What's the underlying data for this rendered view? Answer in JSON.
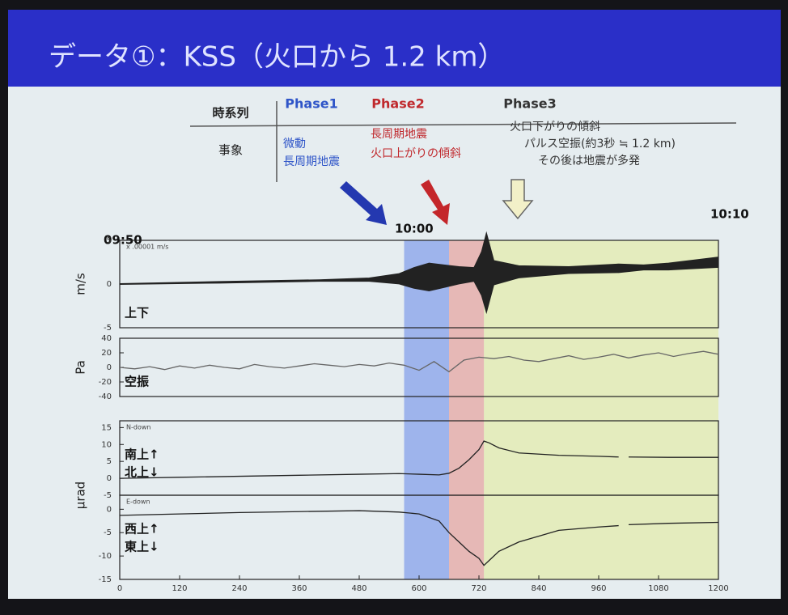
{
  "slide": {
    "title": "データ①：KSS（火口から 1.2 km）",
    "header_label": "時系列",
    "row_label": "事象",
    "phases": [
      {
        "name": "Phase1",
        "color": "#2f55c8",
        "span": [
          570,
          660
        ],
        "events": [
          "微動",
          "長周期地震"
        ]
      },
      {
        "name": "Phase2",
        "color": "#c0282c",
        "span": [
          660,
          730
        ],
        "events": [
          "長周期地震",
          "火口上がりの傾斜"
        ]
      },
      {
        "name": "Phase3",
        "color": "#333333",
        "span": [
          730,
          1200
        ],
        "events": [
          "火口下がりの傾斜",
          "パルス空振(約3秒 ≒ 1.2 km)",
          "その後は地震が多発"
        ]
      }
    ],
    "time_labels": [
      {
        "value": 0,
        "label": "09:50"
      },
      {
        "value": 600,
        "label": "10:00"
      },
      {
        "value": 1200,
        "label": "10:10"
      }
    ]
  },
  "chart_data": [
    {
      "type": "envelope",
      "ylabel": "m/s",
      "inset_label": "上下",
      "annotation": "x .00001 m/s",
      "xlim": [
        0,
        1200
      ],
      "ylim": [
        -5,
        5
      ],
      "yticks": [
        -5,
        0,
        5
      ],
      "color": "#222222",
      "x": [
        0,
        200,
        400,
        500,
        560,
        590,
        620,
        650,
        680,
        710,
        725,
        735,
        750,
        800,
        900,
        1000,
        1050,
        1100,
        1200
      ],
      "values": [
        0,
        0.2,
        0.4,
        0.5,
        0.6,
        0.7,
        0.8,
        0.9,
        1.0,
        1.1,
        1.2,
        1.3,
        1.3,
        1.4,
        1.6,
        1.8,
        1.9,
        2.0,
        2.5
      ],
      "amplitudes": [
        0.05,
        0.1,
        0.1,
        0.2,
        0.6,
        1.2,
        1.6,
        1.3,
        1.0,
        0.8,
        2.5,
        4.6,
        1.4,
        0.7,
        0.4,
        0.5,
        0.3,
        0.4,
        0.6
      ]
    },
    {
      "type": "line",
      "ylabel": "Pa",
      "inset_label": "空振",
      "xlim": [
        0,
        1200
      ],
      "ylim": [
        -40,
        40
      ],
      "yticks": [
        -40,
        -20,
        0,
        20,
        40
      ],
      "color": "#666666",
      "x": [
        0,
        30,
        60,
        90,
        120,
        150,
        180,
        210,
        240,
        270,
        300,
        330,
        360,
        390,
        420,
        450,
        480,
        510,
        540,
        570,
        600,
        630,
        660,
        690,
        720,
        750,
        780,
        810,
        840,
        870,
        900,
        930,
        960,
        990,
        1020,
        1050,
        1080,
        1110,
        1140,
        1170,
        1200
      ],
      "values": [
        0,
        -2,
        1,
        -3,
        2,
        -1,
        3,
        0,
        -2,
        4,
        1,
        -1,
        2,
        5,
        3,
        1,
        4,
        2,
        6,
        3,
        -4,
        8,
        -6,
        10,
        14,
        12,
        15,
        10,
        8,
        12,
        16,
        11,
        14,
        18,
        13,
        17,
        20,
        15,
        19,
        22,
        18
      ]
    },
    {
      "type": "line",
      "ylabel": "μrad",
      "inset_label": "南上↑",
      "inset_label2": "北上↓",
      "annotation": "N-down",
      "xlim": [
        0,
        1200
      ],
      "ylim": [
        -5,
        17
      ],
      "yticks": [
        -5,
        0,
        5,
        10,
        15
      ],
      "color": "#222222",
      "x": [
        0,
        120,
        240,
        360,
        480,
        560,
        600,
        640,
        660,
        680,
        700,
        720,
        730,
        740,
        760,
        800,
        880,
        960,
        1000,
        1010,
        1020,
        1100,
        1200
      ],
      "values": [
        0,
        0.3,
        0.6,
        0.9,
        1.2,
        1.4,
        1.2,
        1.0,
        1.5,
        3,
        5.5,
        8.5,
        11,
        10.5,
        9,
        7.5,
        6.8,
        6.5,
        6.3,
        null,
        6.3,
        6.2,
        6.2
      ]
    },
    {
      "type": "line",
      "inset_label": "西上↑",
      "inset_label2": "東上↓",
      "annotation": "E-down",
      "xlim": [
        0,
        1200
      ],
      "ylim": [
        -15,
        3
      ],
      "yticks": [
        -15,
        -10,
        -5,
        0
      ],
      "color": "#222222",
      "xticks": [
        0,
        120,
        240,
        360,
        480,
        600,
        720,
        840,
        960,
        1080,
        1200
      ],
      "x": [
        0,
        120,
        240,
        360,
        480,
        560,
        600,
        640,
        660,
        680,
        700,
        720,
        730,
        740,
        760,
        800,
        880,
        960,
        1000,
        1010,
        1020,
        1100,
        1200
      ],
      "values": [
        -1.3,
        -1.0,
        -0.7,
        -0.5,
        -0.3,
        -0.6,
        -1,
        -2.5,
        -5,
        -7,
        -9,
        -10.5,
        -12,
        -11,
        -9,
        -7,
        -4.5,
        -3.8,
        -3.5,
        null,
        -3.3,
        -3,
        -2.8
      ]
    }
  ]
}
